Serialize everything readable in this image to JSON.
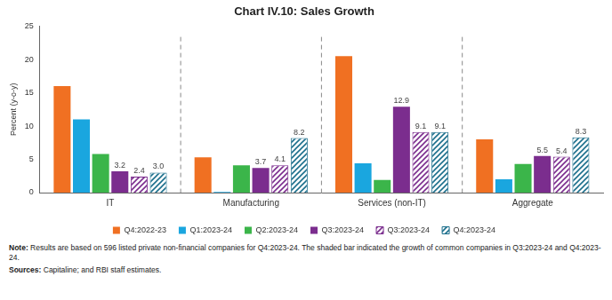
{
  "chart_data": {
    "type": "bar",
    "title": "Chart IV.10: Sales Growth",
    "y_label": "Percent (y-o-y)",
    "categories": [
      "IT",
      "Manufacturing",
      "Services (non-IT)",
      "Aggregate"
    ],
    "series": [
      {
        "name": "Q4:2022-23",
        "color": "#f07022",
        "values": [
          16.0,
          5.3,
          20.5,
          8.0
        ]
      },
      {
        "name": "Q1:2023-24",
        "color": "#1aa6df",
        "values": [
          11.0,
          0.1,
          4.4,
          2.0
        ]
      },
      {
        "name": "Q2:2023-24",
        "color": "#3bb54a",
        "values": [
          5.8,
          4.1,
          1.9,
          4.3
        ]
      },
      {
        "name": "Q3:2023-24",
        "color": "#7b2d8e",
        "values": [
          3.2,
          3.7,
          12.9,
          5.5
        ],
        "data_labels": true
      },
      {
        "name": "Q3:2023-24",
        "color": "#7b2d8e",
        "marker": "hatch",
        "values": [
          2.4,
          4.1,
          9.1,
          5.4
        ],
        "data_labels": true
      },
      {
        "name": "Q4:2023-24",
        "color": "#1c6f8c",
        "marker": "hatch",
        "values": [
          3.0,
          8.2,
          9.1,
          8.3
        ],
        "value_labels": [
          "3.0",
          "8.2",
          "9.1",
          "8.3"
        ],
        "data_labels": true
      }
    ],
    "ylim": [
      0,
      25
    ],
    "yticks": [
      0,
      5,
      10,
      15,
      20,
      25
    ],
    "grid": false,
    "legend": "bottom",
    "note_label": "Note:",
    "note": "Results are based on 596 listed private non-financial companies for Q4:2023-24. The shaded bar indicated the growth of common companies in Q3:2023-24 and Q4:2023-24.",
    "source_label": "Sources:",
    "source": "Capitaline; and RBI staff estimates."
  }
}
